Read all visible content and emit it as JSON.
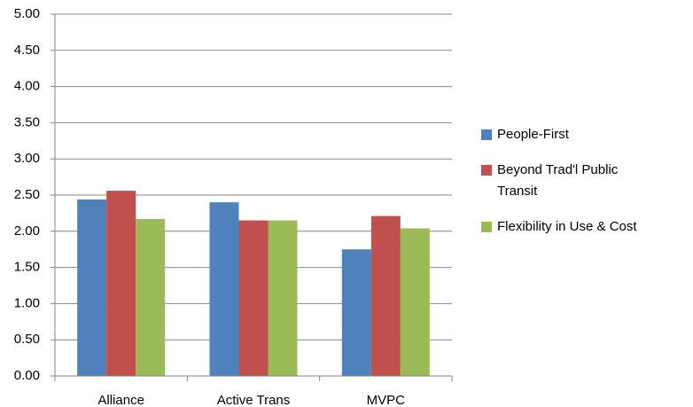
{
  "chart_data": {
    "type": "bar",
    "categories": [
      "Alliance",
      "Active Trans",
      "MVPC"
    ],
    "series": [
      {
        "name": "People-First",
        "color": "#4f81bd",
        "values": [
          2.44,
          2.4,
          1.75
        ]
      },
      {
        "name": "Beyond Trad'l Public Transit",
        "color": "#c0504d",
        "values": [
          2.56,
          2.15,
          2.21
        ]
      },
      {
        "name": "Flexibility in Use & Cost",
        "color": "#9bbb59",
        "values": [
          2.17,
          2.15,
          2.04
        ]
      }
    ],
    "ylim": [
      0,
      5
    ],
    "yticks": [
      {
        "value": 0,
        "label": "0.00"
      },
      {
        "value": 0.5,
        "label": "0.50"
      },
      {
        "value": 1,
        "label": "1.00"
      },
      {
        "value": 1.5,
        "label": "1.50"
      },
      {
        "value": 2,
        "label": "2.00"
      },
      {
        "value": 2.5,
        "label": "2.50"
      },
      {
        "value": 3,
        "label": "3.00"
      },
      {
        "value": 3.5,
        "label": "3.50"
      },
      {
        "value": 4,
        "label": "4.00"
      },
      {
        "value": 4.5,
        "label": "4.50"
      },
      {
        "value": 5,
        "label": "5.00"
      }
    ],
    "grid": true,
    "legend": "right"
  }
}
